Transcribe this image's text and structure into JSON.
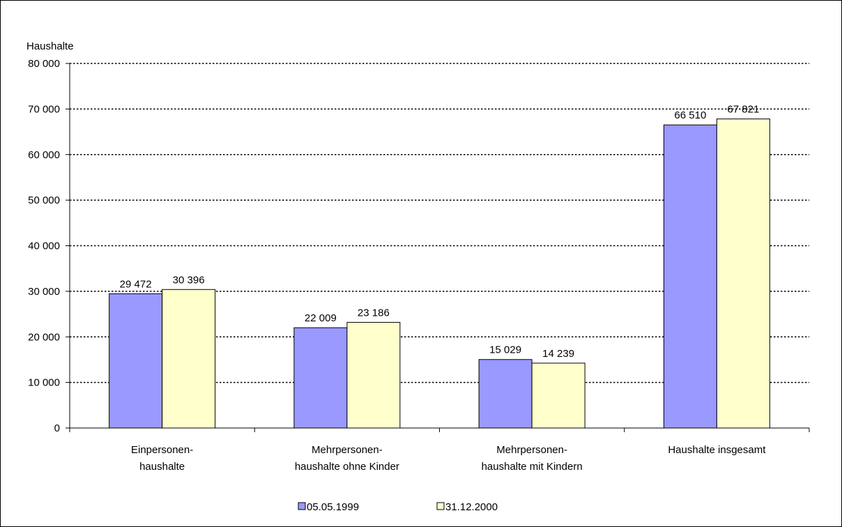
{
  "chart_data": {
    "type": "bar",
    "ylabel": "Haushalte",
    "ylim": [
      0,
      80000
    ],
    "yticks": [
      0,
      10000,
      20000,
      30000,
      40000,
      50000,
      60000,
      70000,
      80000
    ],
    "ytick_labels": [
      "0",
      "10 000",
      "20 000",
      "30 000",
      "40 000",
      "50 000",
      "60 000",
      "70 000",
      "80 000"
    ],
    "categories": [
      [
        "Einpersonen-",
        "haushalte"
      ],
      [
        "Mehrpersonen-",
        "haushalte ohne Kinder"
      ],
      [
        "Mehrpersonen-",
        "haushalte mit Kindern"
      ],
      [
        "Haushalte insgesamt"
      ]
    ],
    "series": [
      {
        "name": "05.05.1999",
        "color": "#9999FF",
        "values": [
          29472,
          22009,
          15029,
          66510
        ],
        "labels": [
          "29 472",
          "22 009",
          "15 029",
          "66 510"
        ]
      },
      {
        "name": "31.12.2000",
        "color": "#FFFFCC",
        "values": [
          30396,
          23186,
          14239,
          67821
        ],
        "labels": [
          "30 396",
          "23 186",
          "14 239",
          "67 821"
        ]
      }
    ],
    "grid": true,
    "grid_style": "dotted",
    "legend": "bottom"
  }
}
